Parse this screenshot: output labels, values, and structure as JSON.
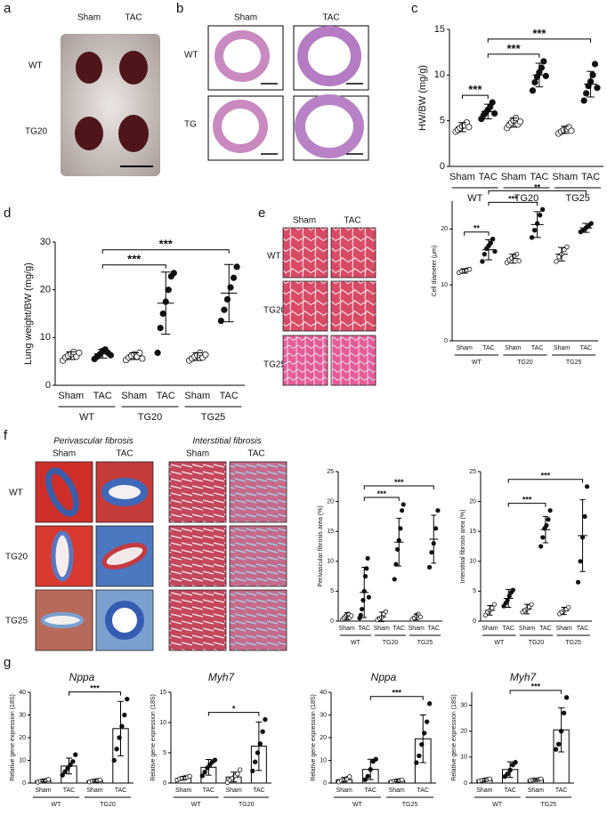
{
  "panel_labels": [
    "a",
    "b",
    "c",
    "d",
    "e",
    "f",
    "g"
  ],
  "panel_a": {
    "columns": [
      "Sham",
      "TAC"
    ],
    "rows": [
      "WT",
      "TG20"
    ]
  },
  "panel_b": {
    "columns": [
      "Sham",
      "TAC"
    ],
    "rows": [
      "WT",
      "TG"
    ]
  },
  "panel_e": {
    "columns": [
      "Sham",
      "TAC"
    ],
    "rows": [
      "WT",
      "TG20",
      "TG25"
    ]
  },
  "panel_f": {
    "sections": [
      {
        "title": "Perivascular fibrosis",
        "columns": [
          "Sham",
          "TAC"
        ]
      },
      {
        "title": "Interstitial fibrosis",
        "columns": [
          "Sham",
          "TAC"
        ]
      }
    ],
    "rows": [
      "WT",
      "TG20",
      "TG25"
    ]
  },
  "chart_data": [
    {
      "type": "dot",
      "y_label": "HW/BW (mg/g)",
      "categories": [
        "Sham",
        "TAC",
        "Sham",
        "TAC",
        "Sham",
        "TAC"
      ],
      "groups": [
        "WT",
        "TG20",
        "TG25"
      ],
      "values": [
        4.3,
        6.0,
        4.8,
        10.0,
        4.0,
        9.0
      ],
      "errors": [
        0.5,
        0.8,
        0.5,
        1.3,
        0.4,
        1.4
      ],
      "points": [
        [
          3.8,
          4.0,
          4.2,
          4.4,
          4.5,
          4.8,
          4.3
        ],
        [
          5.2,
          5.6,
          5.9,
          6.2,
          6.5,
          7.0,
          5.8
        ],
        [
          4.2,
          4.5,
          4.8,
          5.0,
          5.3,
          4.6,
          4.9
        ],
        [
          8.3,
          9.2,
          9.8,
          10.3,
          10.8,
          11.5,
          9.9
        ],
        [
          3.6,
          3.8,
          4.0,
          4.1,
          4.3,
          3.9
        ],
        [
          7.2,
          8.0,
          8.8,
          9.3,
          10.0,
          11.2,
          8.6
        ]
      ],
      "ylim": [
        0,
        15
      ],
      "yticks": [
        0,
        5,
        10,
        15
      ],
      "annotations": [
        {
          "label": "***",
          "between": [
            0,
            1
          ]
        },
        {
          "label": "***",
          "between": [
            1,
            3
          ]
        },
        {
          "label": "***",
          "between": [
            1,
            5
          ]
        }
      ]
    },
    {
      "type": "dot",
      "y_label": "Lung weight/BW (mg/g)",
      "categories": [
        "Sham",
        "TAC",
        "Sham",
        "TAC",
        "Sham",
        "TAC"
      ],
      "groups": [
        "WT",
        "TG20",
        "TG25"
      ],
      "values": [
        6.2,
        6.6,
        6.1,
        17.2,
        6.0,
        19.3
      ],
      "errors": [
        0.8,
        0.9,
        0.7,
        6.5,
        0.8,
        6.0
      ],
      "points": [
        [
          5.2,
          5.8,
          6.2,
          6.5,
          7.0,
          6.0,
          6.8
        ],
        [
          5.5,
          6.0,
          6.5,
          7.2,
          7.5,
          6.8,
          6.3
        ],
        [
          5.3,
          5.8,
          6.2,
          6.5,
          6.0,
          6.8,
          5.6
        ],
        [
          6.8,
          12.0,
          15.0,
          17.5,
          20.0,
          22.8,
          23.5
        ],
        [
          5.2,
          5.6,
          6.0,
          6.3,
          6.8,
          5.8,
          6.4
        ],
        [
          13.5,
          15.8,
          18.0,
          20.5,
          22.5,
          24.8
        ]
      ],
      "ylim": [
        0,
        30
      ],
      "yticks": [
        0,
        10,
        20,
        30
      ],
      "annotations": [
        {
          "label": "***",
          "between": [
            1,
            3
          ]
        },
        {
          "label": "***",
          "between": [
            1,
            5
          ]
        }
      ]
    },
    {
      "type": "dot",
      "y_label": "Cell diameter (μm)",
      "categories": [
        "Sham",
        "TAC",
        "Sham",
        "TAC",
        "Sham",
        "TAC"
      ],
      "groups": [
        "WT",
        "TG20",
        "TG25"
      ],
      "values": [
        12.5,
        16.3,
        14.7,
        20.8,
        15.5,
        20.2
      ],
      "errors": [
        0.4,
        1.8,
        0.8,
        2.3,
        1.2,
        0.8
      ],
      "points": [
        [
          12.2,
          12.4,
          12.5,
          12.7,
          12.8
        ],
        [
          14.2,
          15.5,
          16.5,
          17.0,
          17.5,
          18.2,
          16.0
        ],
        [
          14.0,
          14.5,
          14.8,
          15.2,
          15.5,
          14.3
        ],
        [
          18.5,
          19.8,
          21.0,
          22.5,
          23.5
        ],
        [
          14.2,
          15.0,
          15.5,
          16.3,
          16.8
        ],
        [
          19.5,
          19.8,
          20.2,
          20.5,
          21.0
        ]
      ],
      "ylim": [
        0,
        25
      ],
      "yticks": [
        0,
        10,
        20
      ],
      "annotations": [
        {
          "label": "**",
          "between": [
            0,
            1
          ]
        },
        {
          "label": "***",
          "between": [
            1,
            3
          ]
        },
        {
          "label": "**",
          "between": [
            1,
            5
          ]
        }
      ]
    },
    {
      "type": "dot",
      "y_label": "Perivascular fibrosis area (%)",
      "categories": [
        "Sham",
        "TAC",
        "Sham",
        "TAC",
        "Sham",
        "TAC"
      ],
      "groups": [
        "WT",
        "TG20",
        "TG25"
      ],
      "values": [
        0.8,
        4.8,
        0.7,
        13.2,
        0.7,
        13.7
      ],
      "errors": [
        0.6,
        4.2,
        0.8,
        4.0,
        0.5,
        4.0
      ],
      "points": [
        [
          0.3,
          0.5,
          0.8,
          1.0,
          1.2,
          0.6,
          0.9
        ],
        [
          0.5,
          1.0,
          2.0,
          3.5,
          5.0,
          7.5,
          8.8,
          10.5,
          4.0
        ],
        [
          0.2,
          0.4,
          0.6,
          1.2,
          1.6
        ],
        [
          7.0,
          9.5,
          12.0,
          13.5,
          15.5,
          18.5,
          19.5
        ],
        [
          0.3,
          0.5,
          0.8,
          1.2,
          0.7
        ],
        [
          9.0,
          11.5,
          13.0,
          15.5,
          18.5
        ]
      ],
      "ylim": [
        0,
        25
      ],
      "yticks": [
        0,
        5,
        10,
        15,
        20,
        25
      ],
      "annotations": [
        {
          "label": "***",
          "between": [
            1,
            3
          ]
        },
        {
          "label": "***",
          "between": [
            1,
            5
          ]
        }
      ]
    },
    {
      "type": "dot",
      "y_label": "Interstitial fibrosis area (%)",
      "categories": [
        "Sham",
        "TAC",
        "Sham",
        "TAC",
        "Sham",
        "TAC"
      ],
      "groups": [
        "WT",
        "TG20",
        "TG25"
      ],
      "values": [
        1.8,
        3.8,
        2.0,
        15.3,
        1.7,
        14.3
      ],
      "errors": [
        0.8,
        1.5,
        0.8,
        2.2,
        0.6,
        6.0
      ],
      "points": [
        [
          1.0,
          1.5,
          1.8,
          2.2,
          2.8
        ],
        [
          2.5,
          3.0,
          3.5,
          4.2,
          4.8,
          5.2
        ],
        [
          1.5,
          1.8,
          2.0,
          2.4,
          2.8
        ],
        [
          12.5,
          14.0,
          15.5,
          16.0,
          17.0,
          18.5
        ],
        [
          1.2,
          1.5,
          1.8,
          2.0,
          2.3
        ],
        [
          6.5,
          10.0,
          14.0,
          17.5,
          22.5
        ]
      ],
      "ylim": [
        0,
        25
      ],
      "yticks": [
        0,
        5,
        10,
        15,
        20,
        25
      ],
      "annotations": [
        {
          "label": "***",
          "between": [
            1,
            3
          ]
        },
        {
          "label": "***",
          "between": [
            1,
            5
          ]
        }
      ]
    },
    {
      "type": "bar",
      "title": "Nppa",
      "y_label": "Relative gene expression (18S)",
      "categories": [
        "Sham",
        "TAC",
        "Sham",
        "TAC"
      ],
      "groups": [
        "WT",
        "TG20"
      ],
      "values": [
        1.0,
        7.5,
        1.0,
        24
      ],
      "errors": [
        0.5,
        3.5,
        0.5,
        12
      ],
      "points": [
        [
          0.4,
          0.8,
          1.0,
          1.3,
          1.6
        ],
        [
          3.5,
          5.0,
          6.5,
          8.0,
          9.5,
          12.5
        ],
        [
          0.5,
          0.8,
          1.0,
          1.2,
          1.4
        ],
        [
          10.0,
          15.0,
          20.0,
          25.0,
          30.0,
          37.0
        ]
      ],
      "ylim": [
        0,
        40
      ],
      "yticks": [
        0,
        10,
        20,
        30,
        40
      ],
      "annotations": [
        {
          "label": "***",
          "between": [
            1,
            3
          ]
        }
      ]
    },
    {
      "type": "bar",
      "title": "Myh7",
      "y_label": "Relative gene expression (18S)",
      "categories": [
        "Sham",
        "TAC",
        "Sham",
        "TAC"
      ],
      "groups": [
        "WT",
        "TG20"
      ],
      "values": [
        0.8,
        2.6,
        1.0,
        6.1
      ],
      "errors": [
        0.3,
        1.3,
        0.8,
        4.0
      ],
      "points": [
        [
          0.5,
          0.7,
          0.8,
          0.9,
          1.0,
          1.1
        ],
        [
          1.2,
          1.8,
          2.5,
          3.0,
          3.5,
          3.8
        ],
        [
          0.1,
          0.5,
          0.8,
          1.2,
          1.5,
          2.2
        ],
        [
          2.0,
          3.5,
          5.0,
          6.5,
          8.5,
          10.5
        ]
      ],
      "ylim": [
        0,
        15
      ],
      "yticks": [
        0,
        5,
        10,
        15
      ],
      "annotations": [
        {
          "label": "*",
          "between": [
            1,
            3
          ]
        }
      ]
    },
    {
      "type": "bar",
      "title": "Nppa",
      "y_label": "Relative gene expression (18S)",
      "categories": [
        "Sham",
        "TAC",
        "Sham",
        "TAC"
      ],
      "groups": [
        "WT",
        "TG25"
      ],
      "values": [
        1.5,
        6.0,
        1.0,
        19.5
      ],
      "errors": [
        1.0,
        4.5,
        0.5,
        10.5
      ],
      "points": [
        [
          0.5,
          1.0,
          1.5,
          2.0,
          2.8
        ],
        [
          1.5,
          3.0,
          6.0,
          9.5,
          10.5
        ],
        [
          0.6,
          0.8,
          1.0,
          1.2,
          1.4
        ],
        [
          9.0,
          12.0,
          17.0,
          22.0,
          27.0,
          35.0
        ]
      ],
      "ylim": [
        0,
        40
      ],
      "yticks": [
        0,
        10,
        20,
        30,
        40
      ],
      "annotations": [
        {
          "label": "***",
          "between": [
            1,
            3
          ]
        }
      ]
    },
    {
      "type": "bar",
      "title": "Myh7",
      "y_label": "Relative gene expression (18S)",
      "categories": [
        "Sham",
        "TAC",
        "Sham",
        "TAC"
      ],
      "groups": [
        "WT",
        "TG25"
      ],
      "values": [
        1.2,
        5.2,
        1.3,
        20.5
      ],
      "errors": [
        0.5,
        3.0,
        0.3,
        8.5
      ],
      "points": [
        [
          0.8,
          1.0,
          1.2,
          1.4,
          1.6
        ],
        [
          2.5,
          3.5,
          5.0,
          7.0,
          8.0
        ],
        [
          1.0,
          1.2,
          1.3,
          1.4,
          1.6
        ],
        [
          13.0,
          15.0,
          20.0,
          27.0,
          33.0
        ]
      ],
      "ylim": [
        0,
        35
      ],
      "yticks": [
        0,
        10,
        20,
        30
      ],
      "annotations": [
        {
          "label": "***",
          "between": [
            1,
            3
          ]
        }
      ]
    }
  ]
}
